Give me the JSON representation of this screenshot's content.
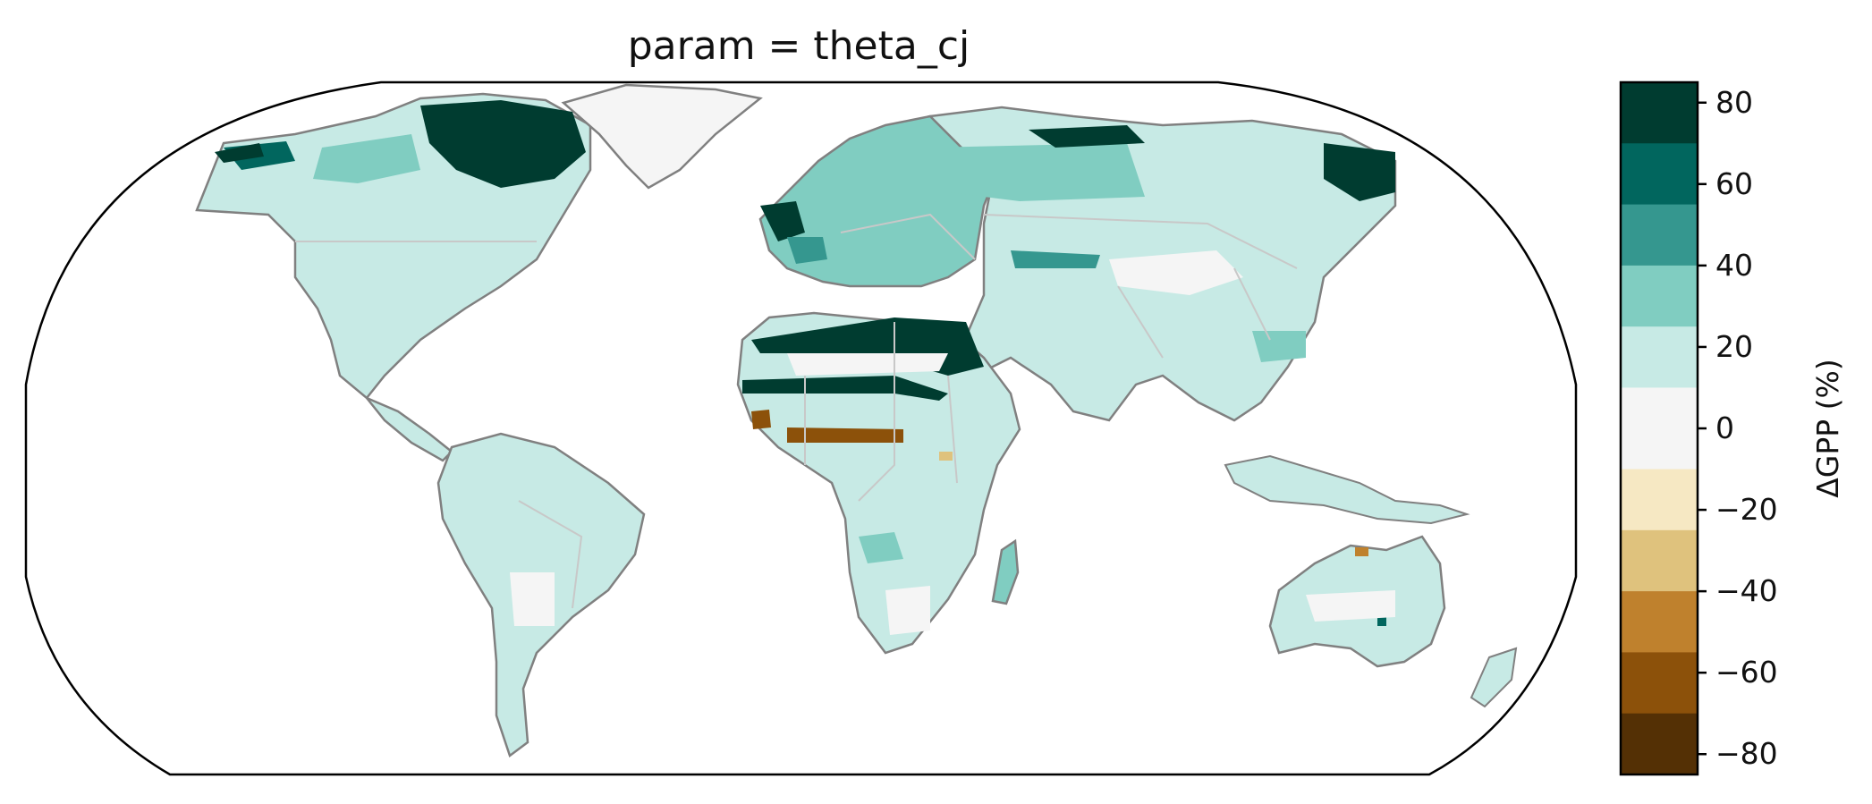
{
  "title": "param = theta_cj",
  "colorbar": {
    "label": "ΔGPP (%)",
    "ticks": [
      "80",
      "60",
      "40",
      "20",
      "0",
      "−20",
      "−40",
      "−60",
      "−80"
    ],
    "tick_values": [
      80,
      60,
      40,
      20,
      0,
      -20,
      -40,
      -60,
      -80
    ],
    "range": [
      -85,
      85
    ],
    "bins": [
      {
        "from": 70,
        "to": 85,
        "color": "#003c30"
      },
      {
        "from": 55,
        "to": 70,
        "color": "#01665e"
      },
      {
        "from": 40,
        "to": 55,
        "color": "#35978f"
      },
      {
        "from": 25,
        "to": 40,
        "color": "#80cdc1"
      },
      {
        "from": 10,
        "to": 25,
        "color": "#c7eae5"
      },
      {
        "from": -10,
        "to": 10,
        "color": "#f5f5f5"
      },
      {
        "from": -25,
        "to": -10,
        "color": "#f6e8c3"
      },
      {
        "from": -40,
        "to": -25,
        "color": "#dfc27d"
      },
      {
        "from": -55,
        "to": -40,
        "color": "#bf812d"
      },
      {
        "from": -70,
        "to": -55,
        "color": "#8c510a"
      },
      {
        "from": -85,
        "to": -70,
        "color": "#543005"
      }
    ]
  },
  "map": {
    "projection": "Robinson",
    "coastline_color": "#808080",
    "border_color": "#c8c8c8"
  }
}
